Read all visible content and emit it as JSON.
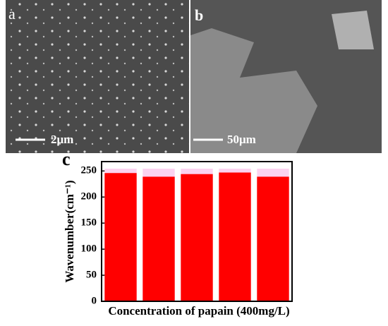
{
  "panels": [
    {
      "label": "a",
      "scale_bar": "2μm"
    },
    {
      "label": "b",
      "scale_bar": "50μm"
    }
  ],
  "chart_data": {
    "type": "bar",
    "panel_label": "c",
    "x_label": "Concentration of papain (400mg/L)",
    "y_label": "Wavenumber(cm⁻¹)",
    "categories": [
      null,
      null,
      null,
      null,
      null
    ],
    "values": [
      246,
      239,
      244,
      247,
      239
    ],
    "color": "#ff0000",
    "ylim": [
      0,
      268
    ],
    "yticks": [
      0,
      50,
      100,
      150,
      200,
      250
    ]
  }
}
